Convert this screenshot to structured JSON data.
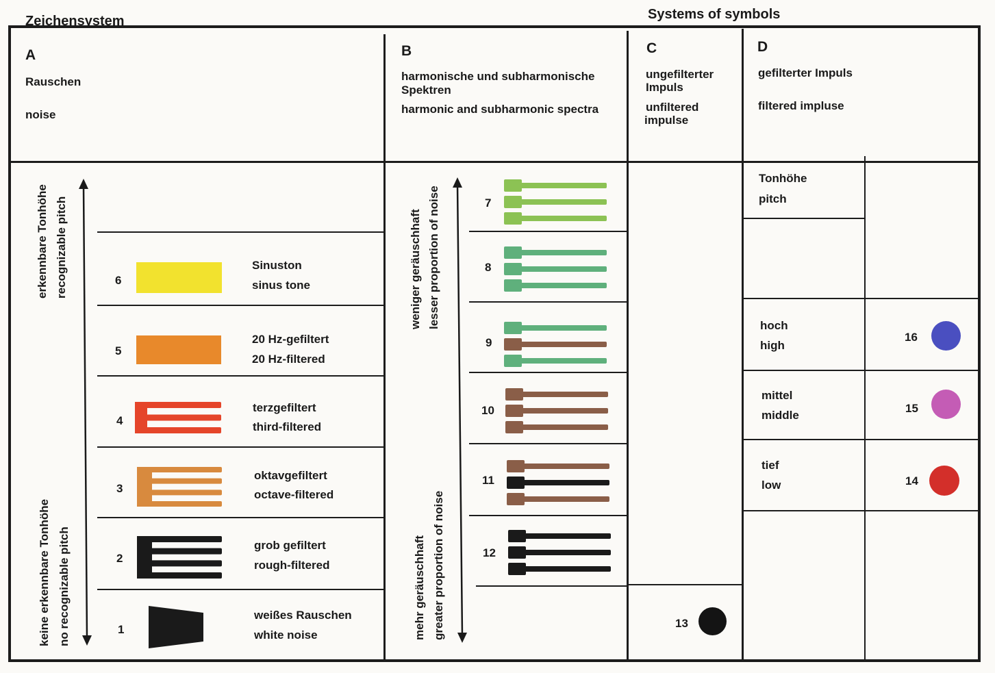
{
  "header": {
    "title_de": "Zeichensystem",
    "title_en": "Systems of symbols"
  },
  "columns": {
    "a": {
      "letter": "A",
      "de": "Rauschen",
      "en": "noise"
    },
    "b": {
      "letter": "B",
      "de_line1": "harmonische und subharmonische",
      "de_line2": "Spektren",
      "en": "harmonic and subharmonic spectra"
    },
    "c": {
      "letter": "C",
      "de_line1": "ungefilterter",
      "de_line2": "Impuls",
      "en_line1": "unfiltered",
      "en_line2": "impulse"
    },
    "d": {
      "letter": "D",
      "de": "gefilterter Impuls",
      "en": "filtered impluse"
    }
  },
  "axis_a": {
    "top_de": "erkennbare Tonhöhe",
    "top_en": "recognizable pitch",
    "bottom_de": "keine erkennbare Tonhöhe",
    "bottom_en": "no recognizable pitch"
  },
  "axis_b": {
    "top_de": "weniger geräuschhaft",
    "top_en": "lesser proportion of noise",
    "bottom_de": "mehr geräuschhaft",
    "bottom_en": "greater proportion of noise"
  },
  "noise_rows": [
    {
      "number": "6",
      "de": "Sinuston",
      "en": "sinus tone",
      "color": "#f2e22e",
      "symbol": "sine"
    },
    {
      "number": "5",
      "de": "20 Hz-gefiltert",
      "en": "20 Hz-filtered",
      "color": "#e8892b",
      "symbol": "block"
    },
    {
      "number": "4",
      "de": "terzgefiltert",
      "en": "third-filtered",
      "color": "#e5452a",
      "symbol": "comb-3"
    },
    {
      "number": "3",
      "de": "oktavgefiltert",
      "en": "octave-filtered",
      "color": "#d88a3e",
      "symbol": "comb-4"
    },
    {
      "number": "2",
      "de": "grob gefiltert",
      "en": "rough-filtered",
      "color": "#1a1a1a",
      "symbol": "comb-4"
    },
    {
      "number": "1",
      "de": "weißes Rauschen",
      "en": "white noise",
      "color": "#1a1a1a",
      "symbol": "trapezoid"
    }
  ],
  "spectra_rows": [
    {
      "number": "7",
      "bars": [
        "#8cc254",
        "#8cc254",
        "#8cc254"
      ]
    },
    {
      "number": "8",
      "bars": [
        "#5fb07c",
        "#5fb07c",
        "#5fb07c"
      ]
    },
    {
      "number": "9",
      "bars": [
        "#5fb07c",
        "#8a5e48",
        "#5fb07c"
      ]
    },
    {
      "number": "10",
      "bars": [
        "#8a5e48",
        "#8a5e48",
        "#8a5e48"
      ]
    },
    {
      "number": "11",
      "bars": [
        "#8a5e48",
        "#1a1a1a",
        "#8a5e48"
      ]
    },
    {
      "number": "12",
      "bars": [
        "#1a1a1a",
        "#1a1a1a",
        "#1a1a1a"
      ]
    }
  ],
  "impulse": {
    "number": "13",
    "color": "#141414"
  },
  "filtered_impulse": {
    "pitch_de": "Tonhöhe",
    "pitch_en": "pitch",
    "rows": [
      {
        "de": "hoch",
        "en": "high",
        "number": "16",
        "color": "#4a4fc0"
      },
      {
        "de": "mittel",
        "en": "middle",
        "number": "15",
        "color": "#c45cb5"
      },
      {
        "de": "tief",
        "en": "low",
        "number": "14",
        "color": "#d32f2a"
      }
    ]
  }
}
